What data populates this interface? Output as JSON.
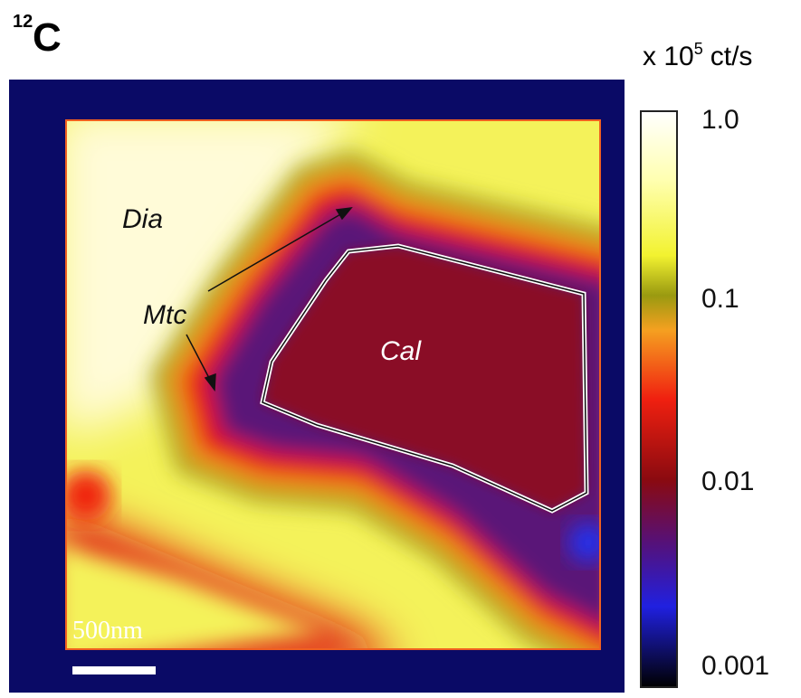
{
  "panel": {
    "label_mass": "12",
    "label_element": "C"
  },
  "colorbar": {
    "unit_prefix": "x 10",
    "unit_exponent": "5",
    "unit_suffix": "ct/s",
    "ticks": [
      "1.0",
      "0.1",
      "0.01",
      "0.001"
    ]
  },
  "image": {
    "annotations": [
      "Dia",
      "Mtc",
      "Cal"
    ],
    "scale_bar": "500nm"
  }
}
